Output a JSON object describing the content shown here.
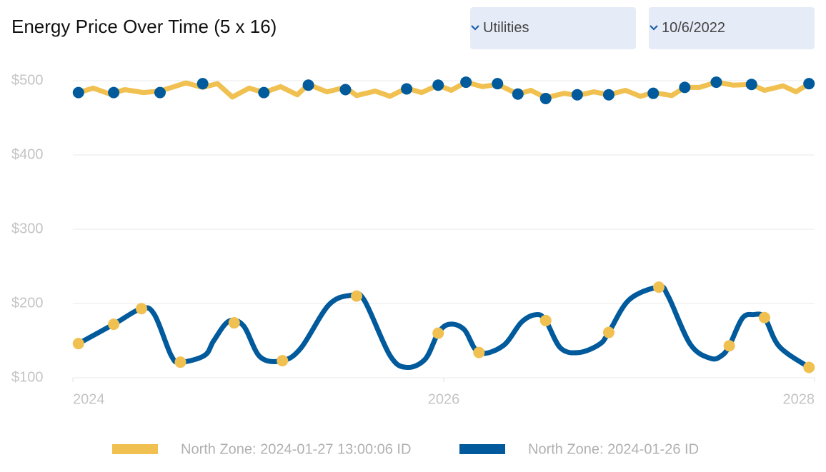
{
  "filters": [
    "Utilities",
    "10/6/2022"
  ],
  "chart_data": {
    "type": "line",
    "title": "Energy Price Over Time (5 x 16)",
    "xlim": [
      2024,
      2028
    ],
    "xticks": [
      2024,
      2026,
      2028
    ],
    "ylim": [
      100,
      510
    ],
    "yticks": [
      {
        "value": 100,
        "label": "$100"
      },
      {
        "value": 200,
        "label": "$200"
      },
      {
        "value": 300,
        "label": "$300"
      },
      {
        "value": 400,
        "label": "$400"
      },
      {
        "value": 500,
        "label": "$500"
      }
    ],
    "grid": true,
    "legend": "bottom",
    "series": [
      {
        "name": "North Zone: 2024-01-27 13:00:06 ID",
        "color": "#f0c050",
        "smooth": false,
        "x": [
          2024.03,
          2024.11,
          2024.2,
          2024.28,
          2024.38,
          2024.47,
          2024.61,
          2024.7,
          2024.78,
          2024.86,
          2024.95,
          2025.03,
          2025.12,
          2025.21,
          2025.27,
          2025.37,
          2025.47,
          2025.53,
          2025.63,
          2025.71,
          2025.8,
          2025.88,
          2025.97,
          2026.04,
          2026.12,
          2026.21,
          2026.29,
          2026.4,
          2026.47,
          2026.55,
          2026.65,
          2026.72,
          2026.81,
          2026.89,
          2026.98,
          2027.06,
          2027.13,
          2027.23,
          2027.3,
          2027.38,
          2027.47,
          2027.56,
          2027.66,
          2027.73,
          2027.83,
          2027.9,
          2027.97
        ],
        "values": [
          484,
          490,
          482,
          488,
          484,
          486,
          497,
          491,
          496,
          478,
          490,
          484,
          492,
          481,
          495,
          485,
          491,
          480,
          486,
          479,
          490,
          484,
          494,
          487,
          498,
          492,
          495,
          482,
          487,
          477,
          483,
          480,
          485,
          481,
          487,
          479,
          484,
          480,
          491,
          491,
          498,
          494,
          495,
          487,
          493,
          485,
          496
        ],
        "markers": {
          "color": "#005a9c",
          "x": [
            2024.03,
            2024.22,
            2024.47,
            2024.7,
            2025.03,
            2025.27,
            2025.47,
            2025.8,
            2025.97,
            2026.12,
            2026.29,
            2026.4,
            2026.55,
            2026.72,
            2026.89,
            2027.13,
            2027.3,
            2027.47,
            2027.66,
            2027.97
          ],
          "values": [
            484,
            484,
            484,
            496,
            484,
            494,
            488,
            489,
            494,
            498,
            496,
            482,
            476,
            481,
            481,
            483,
            491,
            498,
            495,
            496
          ]
        }
      },
      {
        "name": "North Zone: 2024-01-26 ID",
        "color": "#005a9c",
        "smooth": true,
        "x": [
          2024.03,
          2024.22,
          2024.37,
          2024.44,
          2024.53,
          2024.58,
          2024.71,
          2024.76,
          2024.84,
          2024.92,
          2025.01,
          2025.13,
          2025.23,
          2025.38,
          2025.5,
          2025.57,
          2025.71,
          2025.8,
          2025.9,
          2025.97,
          2026.03,
          2026.11,
          2026.19,
          2026.32,
          2026.42,
          2026.5,
          2026.55,
          2026.63,
          2026.73,
          2026.84,
          2026.89,
          2027.0,
          2027.16,
          2027.21,
          2027.33,
          2027.44,
          2027.5,
          2027.54,
          2027.61,
          2027.67,
          2027.73,
          2027.81,
          2027.97
        ],
        "values": [
          146,
          172,
          193,
          185,
          130,
          121,
          130,
          150,
          176,
          170,
          128,
          123,
          140,
          198,
          211,
          205,
          130,
          114,
          125,
          160,
          172,
          165,
          134,
          143,
          175,
          185,
          177,
          140,
          134,
          145,
          161,
          205,
          222,
          210,
          145,
          126,
          130,
          143,
          180,
          185,
          181,
          142,
          114
        ],
        "markers": {
          "color": "#f0c050",
          "x": [
            2024.03,
            2024.22,
            2024.37,
            2024.58,
            2024.87,
            2025.13,
            2025.53,
            2025.97,
            2026.19,
            2026.55,
            2026.89,
            2027.16,
            2027.54,
            2027.73,
            2027.97
          ],
          "values": [
            146,
            172,
            193,
            121,
            174,
            123,
            210,
            160,
            134,
            177,
            161,
            222,
            143,
            181,
            114
          ]
        }
      }
    ]
  }
}
